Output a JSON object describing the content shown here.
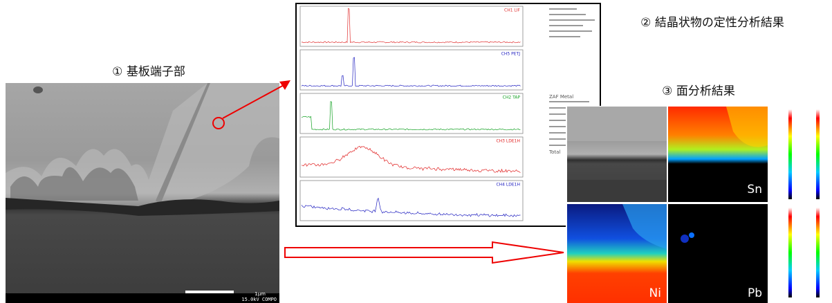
{
  "labels": {
    "substrate": "① 基板端子部",
    "qualitative": "② 結晶状物の定性分析結果",
    "mapping": "③ 面分析結果"
  },
  "sem": {
    "scale": "1μm",
    "condition": "15.0kV COMPO"
  },
  "spectra": {
    "channels": [
      "CH1 LIF",
      "CH5 PETJ",
      "CH2 TAP",
      "CH3 LDE1H",
      "CH4 LDE1H"
    ]
  },
  "report": {
    "method": "ZAF Metal",
    "total": "Total"
  },
  "maps": {
    "sn": "Sn",
    "ni": "Ni",
    "pb": "Pb"
  }
}
